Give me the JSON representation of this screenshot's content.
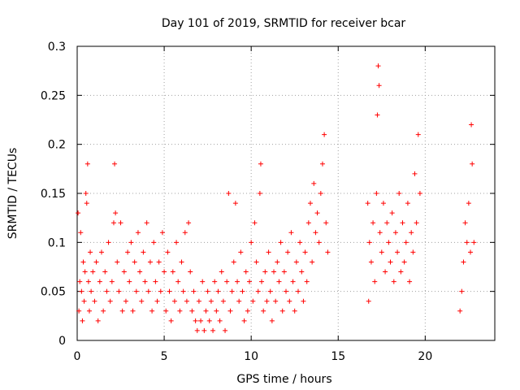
{
  "chart_data": {
    "type": "scatter",
    "title": "Day 101 of 2019, SRMTID for receiver bcar",
    "xlabel": "GPS time / hours",
    "ylabel": "SRMTID / TECUs",
    "xlim": [
      0,
      24
    ],
    "ylim": [
      0,
      0.3
    ],
    "xticks": [
      0,
      5,
      10,
      15,
      20
    ],
    "yticks": [
      0,
      0.05,
      0.1,
      0.15,
      0.2,
      0.25,
      0.3
    ],
    "xtick_labels": [
      "0",
      "5",
      "10",
      "15",
      "20"
    ],
    "ytick_labels": [
      "0",
      "0.05",
      "0.1",
      "0.15",
      "0.2",
      "0.25",
      "0.3"
    ],
    "grid": true,
    "marker": "+",
    "color": "#ff0000",
    "series": [
      {
        "name": "SRMTID",
        "points": [
          [
            0.05,
            0.13
          ],
          [
            0.1,
            0.03
          ],
          [
            0.15,
            0.06
          ],
          [
            0.2,
            0.11
          ],
          [
            0.25,
            0.05
          ],
          [
            0.3,
            0.02
          ],
          [
            0.35,
            0.08
          ],
          [
            0.4,
            0.04
          ],
          [
            0.45,
            0.07
          ],
          [
            0.5,
            0.15
          ],
          [
            0.55,
            0.14
          ],
          [
            0.6,
            0.18
          ],
          [
            0.65,
            0.06
          ],
          [
            0.7,
            0.03
          ],
          [
            0.75,
            0.09
          ],
          [
            0.8,
            0.05
          ],
          [
            0.9,
            0.07
          ],
          [
            1.0,
            0.04
          ],
          [
            1.1,
            0.08
          ],
          [
            1.2,
            0.02
          ],
          [
            1.3,
            0.06
          ],
          [
            1.4,
            0.09
          ],
          [
            1.5,
            0.03
          ],
          [
            1.6,
            0.07
          ],
          [
            1.7,
            0.05
          ],
          [
            1.8,
            0.1
          ],
          [
            1.9,
            0.04
          ],
          [
            2.0,
            0.06
          ],
          [
            2.1,
            0.12
          ],
          [
            2.15,
            0.18
          ],
          [
            2.2,
            0.13
          ],
          [
            2.3,
            0.08
          ],
          [
            2.4,
            0.05
          ],
          [
            2.5,
            0.12
          ],
          [
            2.6,
            0.03
          ],
          [
            2.7,
            0.07
          ],
          [
            2.8,
            0.04
          ],
          [
            2.9,
            0.09
          ],
          [
            3.0,
            0.06
          ],
          [
            3.1,
            0.1
          ],
          [
            3.2,
            0.03
          ],
          [
            3.3,
            0.08
          ],
          [
            3.4,
            0.05
          ],
          [
            3.5,
            0.11
          ],
          [
            3.6,
            0.07
          ],
          [
            3.7,
            0.04
          ],
          [
            3.8,
            0.09
          ],
          [
            3.9,
            0.06
          ],
          [
            4.0,
            0.12
          ],
          [
            4.1,
            0.05
          ],
          [
            4.2,
            0.08
          ],
          [
            4.3,
            0.03
          ],
          [
            4.4,
            0.1
          ],
          [
            4.5,
            0.06
          ],
          [
            4.6,
            0.04
          ],
          [
            4.7,
            0.08
          ],
          [
            4.8,
            0.05
          ],
          [
            4.9,
            0.11
          ],
          [
            5.0,
            0.07
          ],
          [
            5.1,
            0.03
          ],
          [
            5.2,
            0.09
          ],
          [
            5.3,
            0.05
          ],
          [
            5.4,
            0.02
          ],
          [
            5.5,
            0.07
          ],
          [
            5.6,
            0.04
          ],
          [
            5.7,
            0.1
          ],
          [
            5.8,
            0.06
          ],
          [
            5.9,
            0.03
          ],
          [
            6.0,
            0.08
          ],
          [
            6.1,
            0.05
          ],
          [
            6.2,
            0.11
          ],
          [
            6.3,
            0.04
          ],
          [
            6.4,
            0.12
          ],
          [
            6.5,
            0.07
          ],
          [
            6.6,
            0.03
          ],
          [
            6.7,
            0.05
          ],
          [
            6.8,
            0.02
          ],
          [
            6.9,
            0.01
          ],
          [
            7.0,
            0.04
          ],
          [
            7.1,
            0.02
          ],
          [
            7.2,
            0.06
          ],
          [
            7.3,
            0.01
          ],
          [
            7.4,
            0.03
          ],
          [
            7.5,
            0.05
          ],
          [
            7.6,
            0.02
          ],
          [
            7.7,
            0.04
          ],
          [
            7.8,
            0.01
          ],
          [
            7.9,
            0.06
          ],
          [
            8.0,
            0.03
          ],
          [
            8.1,
            0.05
          ],
          [
            8.2,
            0.02
          ],
          [
            8.3,
            0.07
          ],
          [
            8.4,
            0.04
          ],
          [
            8.5,
            0.01
          ],
          [
            8.6,
            0.06
          ],
          [
            8.7,
            0.15
          ],
          [
            8.8,
            0.03
          ],
          [
            8.9,
            0.05
          ],
          [
            9.0,
            0.08
          ],
          [
            9.1,
            0.14
          ],
          [
            9.2,
            0.06
          ],
          [
            9.3,
            0.04
          ],
          [
            9.4,
            0.09
          ],
          [
            9.5,
            0.05
          ],
          [
            9.6,
            0.02
          ],
          [
            9.7,
            0.07
          ],
          [
            9.8,
            0.03
          ],
          [
            9.9,
            0.06
          ],
          [
            10.0,
            0.1
          ],
          [
            10.1,
            0.04
          ],
          [
            10.2,
            0.12
          ],
          [
            10.3,
            0.08
          ],
          [
            10.4,
            0.05
          ],
          [
            10.5,
            0.15
          ],
          [
            10.55,
            0.18
          ],
          [
            10.6,
            0.06
          ],
          [
            10.7,
            0.03
          ],
          [
            10.8,
            0.07
          ],
          [
            10.9,
            0.04
          ],
          [
            11.0,
            0.09
          ],
          [
            11.1,
            0.05
          ],
          [
            11.2,
            0.02
          ],
          [
            11.3,
            0.07
          ],
          [
            11.4,
            0.04
          ],
          [
            11.5,
            0.08
          ],
          [
            11.6,
            0.06
          ],
          [
            11.7,
            0.1
          ],
          [
            11.8,
            0.03
          ],
          [
            11.9,
            0.07
          ],
          [
            12.0,
            0.05
          ],
          [
            12.1,
            0.09
          ],
          [
            12.2,
            0.04
          ],
          [
            12.3,
            0.11
          ],
          [
            12.4,
            0.06
          ],
          [
            12.5,
            0.03
          ],
          [
            12.6,
            0.08
          ],
          [
            12.7,
            0.05
          ],
          [
            12.8,
            0.1
          ],
          [
            12.9,
            0.07
          ],
          [
            13.0,
            0.04
          ],
          [
            13.1,
            0.09
          ],
          [
            13.2,
            0.06
          ],
          [
            13.3,
            0.12
          ],
          [
            13.4,
            0.14
          ],
          [
            13.5,
            0.08
          ],
          [
            13.6,
            0.16
          ],
          [
            13.7,
            0.11
          ],
          [
            13.8,
            0.13
          ],
          [
            13.9,
            0.1
          ],
          [
            14.0,
            0.15
          ],
          [
            14.1,
            0.18
          ],
          [
            14.2,
            0.21
          ],
          [
            14.3,
            0.12
          ],
          [
            14.4,
            0.09
          ],
          [
            16.7,
            0.14
          ],
          [
            16.75,
            0.04
          ],
          [
            16.8,
            0.1
          ],
          [
            16.9,
            0.08
          ],
          [
            17.0,
            0.12
          ],
          [
            17.1,
            0.06
          ],
          [
            17.2,
            0.15
          ],
          [
            17.25,
            0.23
          ],
          [
            17.3,
            0.28
          ],
          [
            17.35,
            0.26
          ],
          [
            17.4,
            0.11
          ],
          [
            17.5,
            0.09
          ],
          [
            17.6,
            0.14
          ],
          [
            17.7,
            0.07
          ],
          [
            17.8,
            0.12
          ],
          [
            17.9,
            0.1
          ],
          [
            18.0,
            0.08
          ],
          [
            18.1,
            0.13
          ],
          [
            18.2,
            0.06
          ],
          [
            18.3,
            0.11
          ],
          [
            18.4,
            0.09
          ],
          [
            18.5,
            0.15
          ],
          [
            18.6,
            0.07
          ],
          [
            18.7,
            0.12
          ],
          [
            18.8,
            0.08
          ],
          [
            18.9,
            0.1
          ],
          [
            19.0,
            0.14
          ],
          [
            19.1,
            0.06
          ],
          [
            19.2,
            0.11
          ],
          [
            19.3,
            0.09
          ],
          [
            19.4,
            0.17
          ],
          [
            19.5,
            0.12
          ],
          [
            19.6,
            0.21
          ],
          [
            19.7,
            0.15
          ],
          [
            22.0,
            0.03
          ],
          [
            22.1,
            0.05
          ],
          [
            22.2,
            0.08
          ],
          [
            22.3,
            0.12
          ],
          [
            22.4,
            0.1
          ],
          [
            22.5,
            0.14
          ],
          [
            22.6,
            0.09
          ],
          [
            22.65,
            0.22
          ],
          [
            22.7,
            0.18
          ],
          [
            22.8,
            0.1
          ]
        ]
      }
    ]
  }
}
